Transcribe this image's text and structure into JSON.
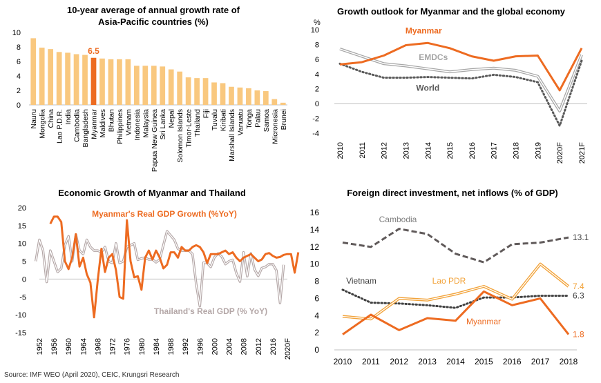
{
  "source": "Source: IMF WEO (April 2020), CEIC, Krungsri Research",
  "colors": {
    "orange": "#ED6B21",
    "light_orange": "#F9C87F",
    "gray": "#A6A6A6",
    "dark_gray": "#595959",
    "gold": "#F2A33A",
    "mauve": "#B4A7A7",
    "grid": "#D9D9D9"
  },
  "chart_data": [
    {
      "type": "bar",
      "title_lines": [
        "10-year average of annual growth rate of",
        "Asia-Pacific countries (%)"
      ],
      "categories": [
        "Nauru",
        "Mongolia",
        "China",
        "Lao P.D.R.",
        "India",
        "Cambodia",
        "Bangladesh",
        "Myanmar",
        "Maldives",
        "Bhutan",
        "Philippines",
        "Vietnam",
        "Indonesia",
        "Malaysia",
        "Papua New Guinea",
        "Sri Lanka",
        "Nepal",
        "Solomon Islands",
        "Timor-Leste",
        "Thailand",
        "Fiji",
        "Tuvalu",
        "Kiribati",
        "Marshall Islands",
        "Vanuatu",
        "Tonga",
        "Palau",
        "Samoa",
        "Micronesia",
        "Brunei"
      ],
      "values": [
        9.2,
        7.9,
        7.7,
        7.3,
        7.2,
        7.0,
        6.9,
        6.5,
        6.4,
        6.3,
        6.3,
        6.3,
        5.4,
        5.4,
        5.4,
        5.3,
        4.9,
        4.6,
        3.8,
        3.7,
        3.7,
        3.1,
        3.0,
        2.5,
        2.4,
        2.3,
        2.0,
        1.9,
        0.8,
        0.3
      ],
      "highlight_label": "6.5",
      "highlight_category": "Myanmar",
      "ylim": [
        0,
        10
      ],
      "yticks": [
        "0",
        "2",
        "4",
        "6",
        "8",
        "10"
      ]
    },
    {
      "type": "line",
      "title": "Growth outlook for Myanmar and the global economy",
      "ylabel": "%",
      "categories": [
        "2010",
        "2011",
        "2012",
        "2013",
        "2014",
        "2015",
        "2016",
        "2017",
        "2018",
        "2019",
        "2020F",
        "2021F"
      ],
      "ylim": [
        -4,
        10
      ],
      "yticks": [
        "-4",
        "-2",
        "0",
        "2",
        "4",
        "6",
        "8",
        "10"
      ],
      "series": [
        {
          "name": "Myanmar",
          "values": [
            5.3,
            5.6,
            6.5,
            7.9,
            8.2,
            7.5,
            6.4,
            5.8,
            6.4,
            6.5,
            1.8,
            7.5
          ]
        },
        {
          "name": "EMDCs",
          "values": [
            7.4,
            6.4,
            5.4,
            5.1,
            4.7,
            4.3,
            4.6,
            4.8,
            4.5,
            3.7,
            -1.0,
            6.6
          ]
        },
        {
          "name": "World",
          "values": [
            5.4,
            4.3,
            3.5,
            3.5,
            3.6,
            3.5,
            3.4,
            3.9,
            3.6,
            2.9,
            -3.0,
            5.8
          ]
        }
      ]
    },
    {
      "type": "line",
      "title": "Economic Growth of Myanmar and Thailand",
      "x_start": 1952,
      "x_end": 2020,
      "xticks": [
        "1952",
        "1956",
        "1960",
        "1964",
        "1968",
        "1972",
        "1976",
        "1980",
        "1984",
        "1988",
        "1992",
        "1996",
        "2000",
        "2004",
        "2008",
        "2012",
        "2016",
        "2020F"
      ],
      "ylim": [
        -15,
        20
      ],
      "yticks": [
        "-15",
        "-10",
        "-5",
        "0",
        "5",
        "10",
        "15",
        "20"
      ],
      "series": [
        {
          "name": "Myanmar's Real GDP Growth (%YoY)",
          "start": 1955,
          "values": [
            15.5,
            17.5,
            17.5,
            16,
            5,
            2.8,
            6,
            12.6,
            3.5,
            6,
            1.4,
            -1,
            -10.7,
            -0.3,
            8.5,
            2,
            6,
            7,
            2.5,
            -5,
            -5.5,
            16.5,
            5,
            0.5,
            0.8,
            -3,
            6,
            8,
            5.5,
            8,
            6,
            3,
            4,
            7.5,
            7.5,
            6,
            9,
            8,
            8,
            9,
            9.5,
            9,
            7.5,
            4.5,
            7,
            7,
            7,
            7.5,
            8,
            7,
            7.5,
            6,
            5,
            6,
            6.5,
            7,
            6,
            5,
            5.5,
            7,
            7.3,
            6.5,
            6,
            6.2,
            6.8,
            7,
            7,
            1.8,
            7.5
          ]
        },
        {
          "name": "Thailand's Real GDP (% YoY)",
          "start": 1951,
          "values": [
            5,
            11,
            8,
            -0.8,
            8,
            5,
            2,
            3,
            9.5,
            12,
            5,
            12.5,
            8,
            7,
            11,
            9,
            8,
            8,
            7.5,
            9,
            5,
            4.5,
            10,
            4.5,
            5,
            9,
            9.5,
            10,
            5.4,
            5.8,
            6,
            5.5,
            5.5,
            4.7,
            5.5,
            9.5,
            13.4,
            12.2,
            11,
            8.5,
            8,
            8,
            8,
            7,
            -1.4,
            -7.6,
            4.6,
            4.5,
            3.4,
            6.1,
            7.2,
            6.3,
            4.2,
            5,
            5.4,
            1.7,
            -0.7,
            7.5,
            0.8,
            7.2,
            2.7,
            0.9,
            3.1,
            3.4,
            4.2,
            4.2,
            2.4,
            -6.7,
            4
          ]
        }
      ],
      "annotations": [
        "Myanmar's Real GDP Growth (%YoY)",
        "Thailand's Real GDP (% YoY)"
      ]
    },
    {
      "type": "line",
      "title": "Foreign direct investment, net inflows (% of GDP)",
      "categories": [
        "2010",
        "2011",
        "2012",
        "2013",
        "2014",
        "2015",
        "2016",
        "2017",
        "2018"
      ],
      "ylim": [
        0,
        16
      ],
      "yticks": [
        "0",
        "2",
        "4",
        "6",
        "8",
        "10",
        "12",
        "14",
        "16"
      ],
      "series": [
        {
          "name": "Cambodia",
          "values": [
            12.5,
            12.0,
            14.1,
            13.5,
            11.2,
            10.2,
            12.3,
            12.5,
            13.1
          ],
          "end_label": "13.1"
        },
        {
          "name": "Vietnam",
          "values": [
            7.0,
            5.5,
            5.4,
            5.2,
            4.9,
            6.1,
            6.1,
            6.3,
            6.3
          ],
          "end_label": "6.3"
        },
        {
          "name": "Lao PDR",
          "values": [
            3.9,
            3.6,
            6.0,
            5.8,
            6.5,
            7.4,
            5.9,
            10.0,
            7.4
          ],
          "end_label": "7.4"
        },
        {
          "name": "Myanmar",
          "values": [
            1.8,
            4.1,
            2.3,
            3.7,
            3.4,
            6.8,
            5.2,
            6.0,
            1.8
          ],
          "end_label": "1.8"
        }
      ]
    }
  ]
}
